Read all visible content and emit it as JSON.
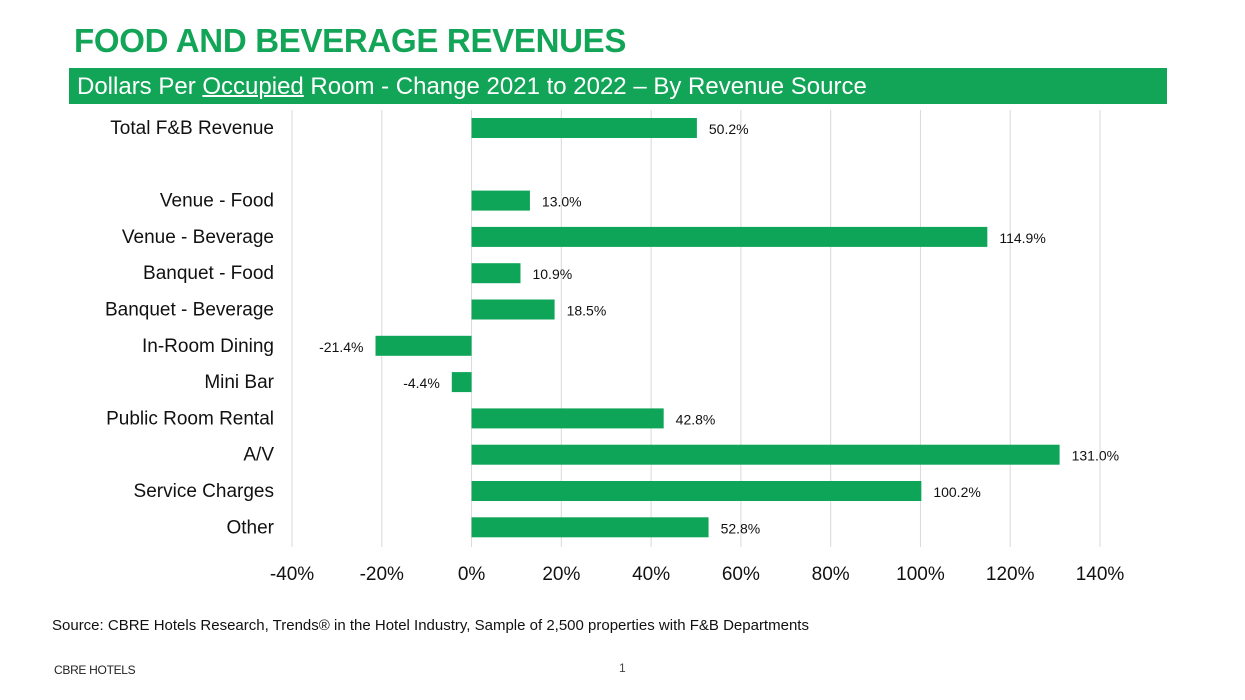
{
  "header": {
    "title": "FOOD AND BEVERAGE REVENUES",
    "subtitle_pre": "Dollars Per ",
    "subtitle_underlined": "Occupied",
    "subtitle_post": " Room - Change 2021 to 2022 – By Revenue Source"
  },
  "colors": {
    "accent": "#12a557",
    "bar": "#0fa558",
    "grid": "#d9d9d9"
  },
  "chart_data": {
    "type": "bar",
    "orientation": "horizontal",
    "categories": [
      "Total F&B Revenue",
      "Venue - Food",
      "Venue - Beverage",
      "Banquet - Food",
      "Banquet - Beverage",
      "In-Room Dining",
      "Mini Bar",
      "Public Room Rental",
      "A/V",
      "Service Charges",
      "Other"
    ],
    "values": [
      50.2,
      13.0,
      114.9,
      10.9,
      18.5,
      -21.4,
      -4.4,
      42.8,
      131.0,
      100.2,
      52.8
    ],
    "data_labels": [
      "50.2%",
      "13.0%",
      "114.9%",
      "10.9%",
      "18.5%",
      "-21.4%",
      "-4.4%",
      "42.8%",
      "131.0%",
      "100.2%",
      "52.8%"
    ],
    "xlim": [
      -40,
      140
    ],
    "xticks": [
      "-40%",
      "-20%",
      "0%",
      "20%",
      "40%",
      "60%",
      "80%",
      "100%",
      "120%",
      "140%"
    ],
    "grid": true,
    "legend": "none"
  },
  "source": "Source: CBRE Hotels Research, Trends® in the Hotel Industry, Sample of 2,500 properties with F&B Departments",
  "footer": {
    "brand": "CBRE HOTELS",
    "page": "1"
  }
}
